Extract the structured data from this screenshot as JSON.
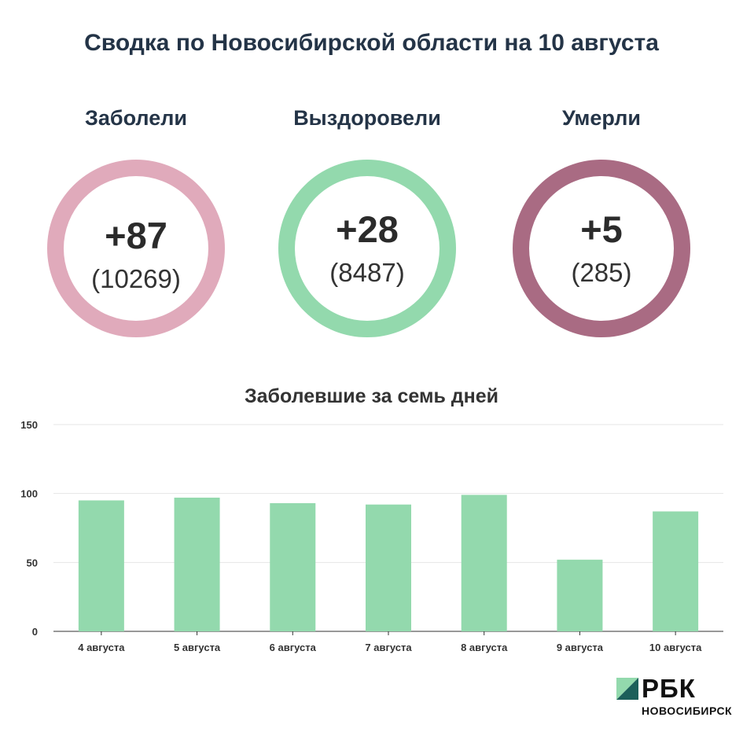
{
  "title": "Сводка по Новосибирской области на 10 августа",
  "stats": [
    {
      "label": "Заболели",
      "delta": "+87",
      "total": "(10269)",
      "color": "#e0aabb"
    },
    {
      "label": "Выздоровели",
      "delta": "+28",
      "total": "(8487)",
      "color": "#93d9ad"
    },
    {
      "label": "Умерли",
      "delta": "+5",
      "total": "(285)",
      "color": "#a96b83"
    }
  ],
  "chart_data": {
    "type": "bar",
    "title": "Заболевшие за семь дней",
    "categories": [
      "4 августа",
      "5 августа",
      "6 августа",
      "7 августа",
      "8 августа",
      "9 августа",
      "10 августа"
    ],
    "values": [
      95,
      97,
      93,
      92,
      99,
      52,
      87
    ],
    "ylim": [
      0,
      150
    ],
    "yticks": [
      0,
      50,
      100,
      150
    ],
    "grid": true,
    "bar_color": "#93d9ad"
  },
  "logo": {
    "brand": "РБК",
    "sub": "НОВОСИБИРСК",
    "colors": [
      "#1c5f5a",
      "#93d9ad"
    ]
  }
}
